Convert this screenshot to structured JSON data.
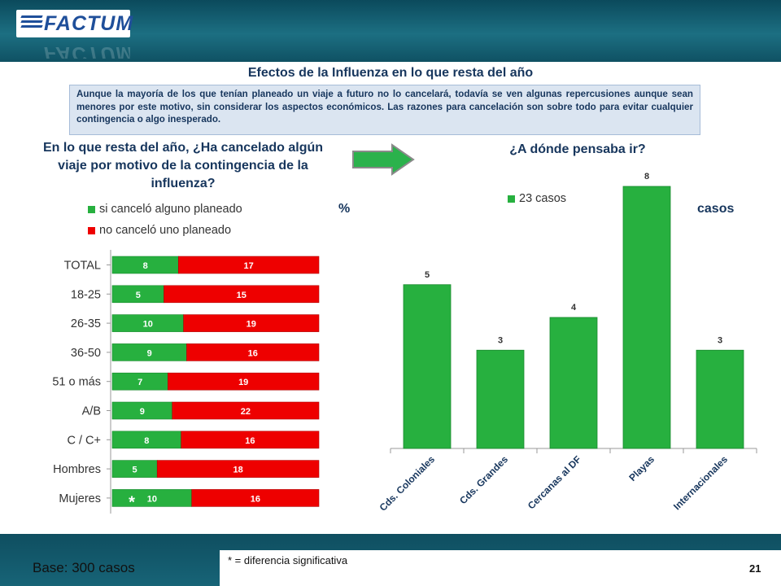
{
  "brand": {
    "logo_text": "FACTUM"
  },
  "title": "Efectos de la Influenza en lo que resta del año",
  "summary": "Aunque la mayoría de los que tenían planeado un viaje a futuro no lo cancelará, todavía se ven algunas repercusiones aunque sean menores por este motivo, sin considerar los aspectos económicos. Las razones para cancelación son sobre todo para evitar cualquier contingencia o algo inesperado.",
  "left_question": "En lo que resta del año, ¿Ha cancelado algún viaje por motivo de la contingencia de la influenza?",
  "right_question": "¿A dónde pensaba ir?",
  "percent_label": "%",
  "casos_label": "casos",
  "footer": {
    "base": "Base: 300 casos",
    "footnote": "* = diferencia significativa",
    "page": "21"
  },
  "colors": {
    "green": "#27b03f",
    "red": "#ee0000",
    "dark_teal": "#0f5163"
  },
  "chart_data": [
    {
      "type": "bar",
      "orientation": "horizontal",
      "stacked": true,
      "categories": [
        "TOTAL",
        "18-25",
        "26-35",
        "36-50",
        "51 o más",
        "A/B",
        "C / C+",
        "Hombres",
        "Mujeres"
      ],
      "series": [
        {
          "name": "si canceló alguno planeado",
          "color": "#27b03f",
          "values": [
            8,
            5,
            10,
            9,
            7,
            9,
            8,
            5,
            10
          ]
        },
        {
          "name": "no canceló uno planeado",
          "color": "#ee0000",
          "values": [
            17,
            15,
            19,
            16,
            19,
            22,
            16,
            18,
            16
          ]
        }
      ],
      "significance_marker": {
        "category": "Mujeres",
        "symbol": "*"
      },
      "legend": "top"
    },
    {
      "type": "bar",
      "categories": [
        "Cds. Coloniales",
        "Cds. Grandes",
        "Cercanas al DF",
        "Playas",
        "Internacionales"
      ],
      "series": [
        {
          "name": "23 casos",
          "color": "#27b03f",
          "values": [
            5,
            3,
            4,
            8,
            3
          ]
        }
      ],
      "ylim": [
        0,
        8
      ],
      "legend": "top"
    }
  ]
}
